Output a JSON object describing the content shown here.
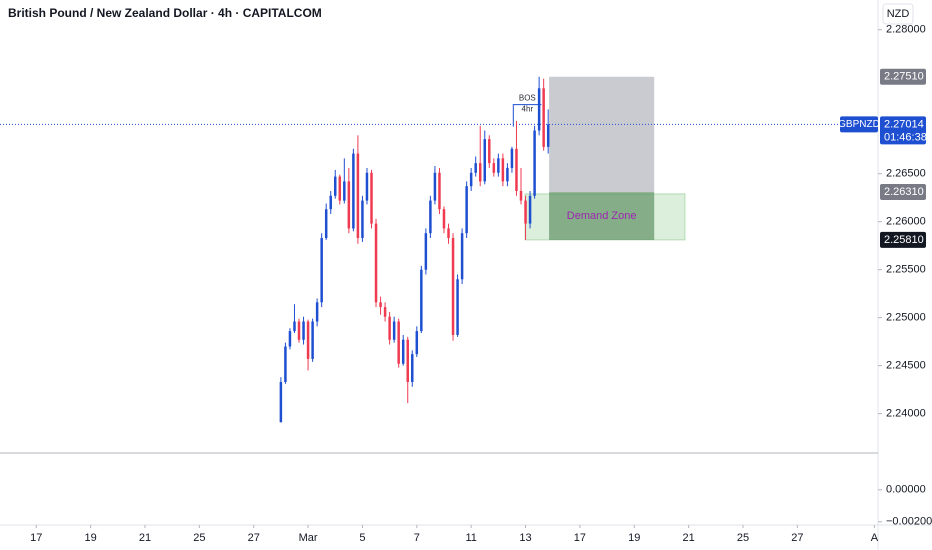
{
  "chart_data": {
    "type": "candlestick",
    "title": "British Pound / New Zealand Dollar · 4h · CAPITALCOM",
    "currency": "NZD",
    "symbol": "GBPNZD",
    "last_price": 2.27014,
    "countdown": "01:46:38",
    "up_color": "#1f4fd1",
    "down_color": "#ef3a50",
    "xlim": [
      -62,
      131.8
    ],
    "xticks": [
      {
        "value": -54,
        "label": "17"
      },
      {
        "value": -42,
        "label": "19"
      },
      {
        "value": -30,
        "label": "21"
      },
      {
        "value": -18,
        "label": "25"
      },
      {
        "value": -6,
        "label": "27"
      },
      {
        "value": 6,
        "label": "Mar"
      },
      {
        "value": 18,
        "label": "5"
      },
      {
        "value": 30,
        "label": "7"
      },
      {
        "value": 42,
        "label": "11"
      },
      {
        "value": 54,
        "label": "13"
      },
      {
        "value": 66,
        "label": "17"
      },
      {
        "value": 78,
        "label": "19"
      },
      {
        "value": 90,
        "label": "21"
      },
      {
        "value": 102,
        "label": "25"
      },
      {
        "value": 114,
        "label": "27"
      },
      {
        "value": 131,
        "label": "A"
      }
    ],
    "ylim": [
      2.2359,
      2.2831
    ],
    "yticks": [
      {
        "value": 2.28,
        "label": "2.28000"
      },
      {
        "value": 2.265,
        "label": "2.26500"
      },
      {
        "value": 2.26,
        "label": "2.26000"
      },
      {
        "value": 2.255,
        "label": "2.25500"
      },
      {
        "value": 2.25,
        "label": "2.25000"
      },
      {
        "value": 2.245,
        "label": "2.24500"
      },
      {
        "value": 2.24,
        "label": "2.24000"
      }
    ],
    "pane2": {
      "ylim": [
        -0.0022,
        0.0023
      ],
      "yticks": [
        {
          "value": 0,
          "label": "0.00000"
        },
        {
          "value": -0.002,
          "label": "−0.00200"
        }
      ]
    },
    "series": {
      "open": [
        2.2391,
        2.2433,
        2.247,
        2.2486,
        2.2496,
        2.2477,
        2.2496,
        2.2457,
        2.2496,
        2.2516,
        2.2583,
        2.2613,
        2.2627,
        2.2647,
        2.2622,
        2.2642,
        2.2593,
        2.2671,
        2.2583,
        2.2622,
        2.2651,
        2.2598,
        2.2516,
        2.2511,
        2.2501,
        2.2477,
        2.2496,
        2.2452,
        2.2477,
        2.2433,
        2.2462,
        2.2486,
        2.255,
        2.2588,
        2.2622,
        2.2651,
        2.2613,
        2.2593,
        2.2583,
        2.2482,
        2.254,
        2.2588,
        2.2637,
        2.2651,
        2.2661,
        2.2642,
        2.2686,
        2.2661,
        2.2651,
        2.2666,
        2.2642,
        2.2656,
        2.2676,
        2.2632,
        2.2622,
        2.2598,
        2.2627,
        2.2695,
        2.2739,
        2.2678
      ],
      "high": [
        2.2438,
        2.2474,
        2.2489,
        2.2514,
        2.2499,
        2.2501,
        2.2498,
        2.2499,
        2.252,
        2.2588,
        2.2619,
        2.2632,
        2.2654,
        2.2649,
        2.2666,
        2.2656,
        2.2676,
        2.269,
        2.2627,
        2.2656,
        2.2654,
        2.2603,
        2.2522,
        2.2516,
        2.2506,
        2.2501,
        2.2499,
        2.2482,
        2.248,
        2.2466,
        2.2491,
        2.2554,
        2.2593,
        2.2627,
        2.2658,
        2.2656,
        2.2616,
        2.2598,
        2.2588,
        2.2545,
        2.2593,
        2.2642,
        2.2656,
        2.2668,
        2.27,
        2.2695,
        2.269,
        2.2666,
        2.2671,
        2.2671,
        2.2661,
        2.2678,
        2.2705,
        2.2656,
        2.2627,
        2.2632,
        2.27,
        2.2751,
        2.2749,
        2.2717
      ],
      "low": [
        2.2391,
        2.2431,
        2.2467,
        2.2484,
        2.2474,
        2.2472,
        2.2445,
        2.2454,
        2.2491,
        2.2511,
        2.2581,
        2.2608,
        2.2624,
        2.2618,
        2.2619,
        2.2588,
        2.259,
        2.2577,
        2.2579,
        2.2618,
        2.2593,
        2.2511,
        2.2503,
        2.2496,
        2.2472,
        2.2474,
        2.2448,
        2.245,
        2.2411,
        2.2428,
        2.2459,
        2.2484,
        2.2545,
        2.2583,
        2.2618,
        2.2608,
        2.2588,
        2.2577,
        2.2476,
        2.248,
        2.2535,
        2.2583,
        2.2632,
        2.2647,
        2.2637,
        2.2639,
        2.2656,
        2.2647,
        2.2647,
        2.2637,
        2.2637,
        2.2651,
        2.2627,
        2.2618,
        2.2581,
        2.2593,
        2.2624,
        2.269,
        2.2674,
        2.2671
      ],
      "close": [
        2.2433,
        2.247,
        2.2486,
        2.2496,
        2.2477,
        2.2496,
        2.2457,
        2.2496,
        2.2516,
        2.2583,
        2.2613,
        2.2627,
        2.2647,
        2.2622,
        2.2642,
        2.2593,
        2.2671,
        2.2583,
        2.2622,
        2.2651,
        2.2598,
        2.2516,
        2.2511,
        2.2501,
        2.2477,
        2.2496,
        2.2452,
        2.2477,
        2.2433,
        2.2462,
        2.2486,
        2.255,
        2.2588,
        2.2622,
        2.2651,
        2.2613,
        2.2593,
        2.2583,
        2.2482,
        2.254,
        2.2588,
        2.2637,
        2.2651,
        2.2661,
        2.2642,
        2.2686,
        2.2661,
        2.2651,
        2.2666,
        2.2642,
        2.2656,
        2.2676,
        2.2632,
        2.2622,
        2.2598,
        2.2627,
        2.2695,
        2.2739,
        2.2678,
        2.27014
      ]
    },
    "price_labels": [
      {
        "value": 2.2751,
        "label": "2.27510",
        "color": "#787b86"
      },
      {
        "value": 2.2631,
        "label": "2.26310",
        "color": "#787b86"
      },
      {
        "value": 2.2581,
        "label": "2.25810",
        "color": "#131722"
      }
    ],
    "target_box": {
      "low": 2.2631,
      "high": 2.2751,
      "x": [
        59.2,
        82.4
      ],
      "color": "#9598a1"
    },
    "demand_zone": {
      "label": "Demand Zone",
      "low": 2.2581,
      "high": 2.2631,
      "x": [
        59.2,
        82.4
      ],
      "outer_x": [
        53.9,
        89.2
      ],
      "outer_high": 2.2629,
      "color": "#4caf50",
      "text_color": "#9c27b0"
    },
    "bos": {
      "label": "BOS",
      "sublabel": "4hr",
      "price": 2.2722,
      "x": [
        51.3,
        57.5
      ],
      "color": "#1f4fd1"
    }
  }
}
